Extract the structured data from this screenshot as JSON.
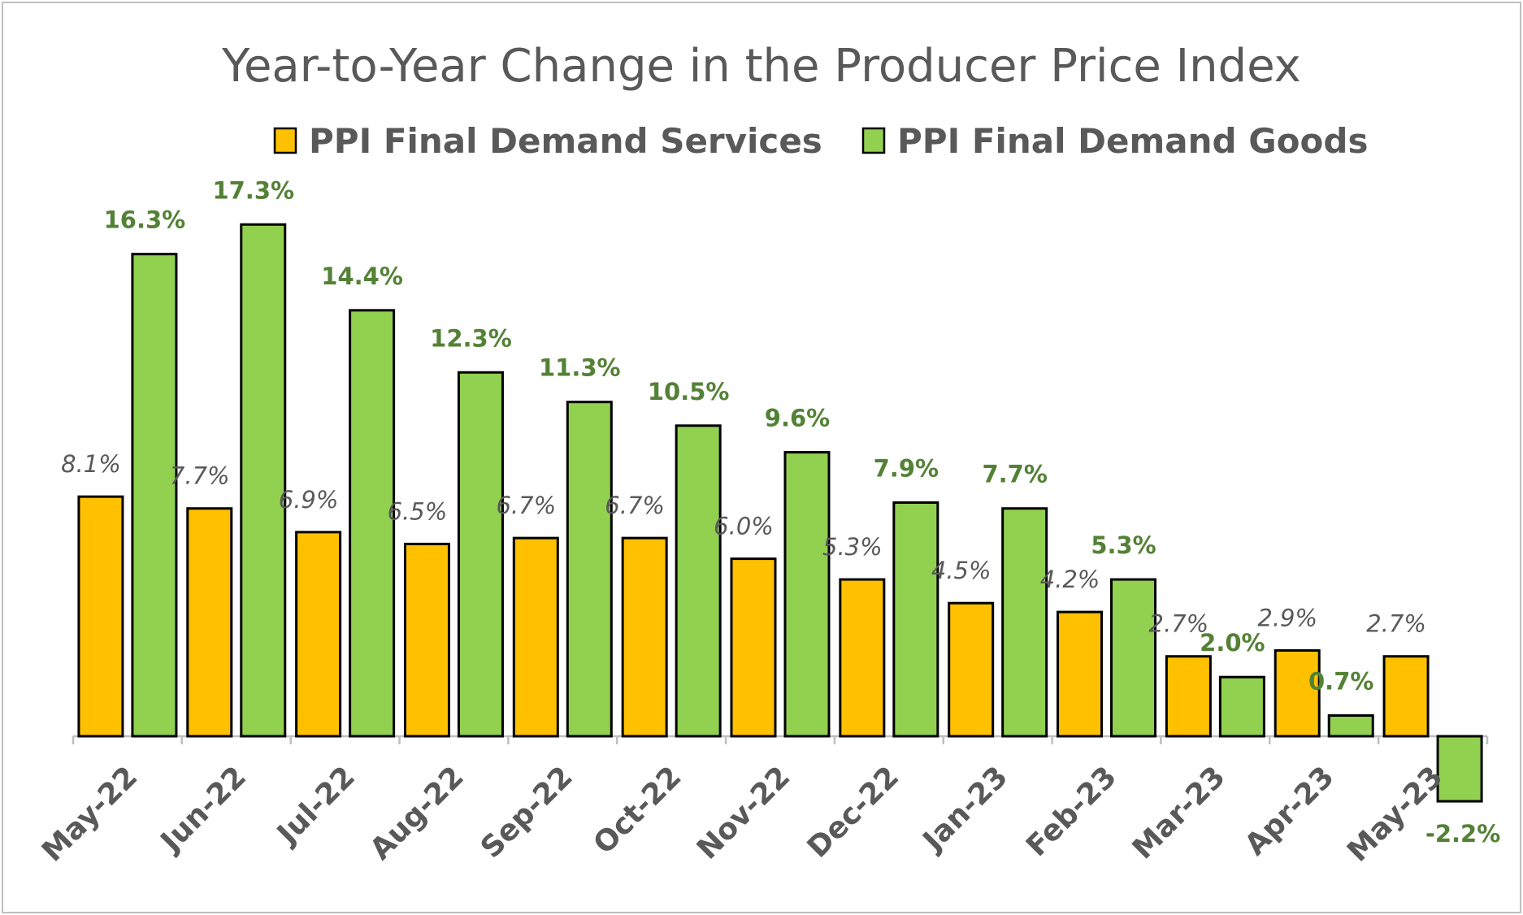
{
  "chart_data": {
    "type": "bar",
    "title": "Year-to-Year Change in the Producer Price Index",
    "xlabel": "",
    "ylabel": "",
    "categories": [
      "May-22",
      "Jun-22",
      "Jul-22",
      "Aug-22",
      "Sep-22",
      "Oct-22",
      "Nov-22",
      "Dec-22",
      "Jan-23",
      "Feb-23",
      "Mar-23",
      "Apr-23",
      "May-23"
    ],
    "series": [
      {
        "name": "PPI Final Demand Services",
        "color": "#ffc000",
        "values": [
          8.1,
          7.7,
          6.9,
          6.5,
          6.7,
          6.7,
          6.0,
          5.3,
          4.5,
          4.2,
          2.7,
          2.9,
          2.7
        ],
        "labels": [
          "8.1%",
          "7.7%",
          "6.9%",
          "6.5%",
          "6.7%",
          "6.7%",
          "6.0%",
          "5.3%",
          "4.5%",
          "4.2%",
          "2.7%",
          "2.9%",
          "2.7%"
        ]
      },
      {
        "name": "PPI Final Demand Goods",
        "color": "#92d050",
        "values": [
          16.3,
          17.3,
          14.4,
          12.3,
          11.3,
          10.5,
          9.6,
          7.9,
          7.7,
          5.3,
          2.0,
          0.7,
          -2.2
        ],
        "labels": [
          "16.3%",
          "17.3%",
          "14.4%",
          "12.3%",
          "11.3%",
          "10.5%",
          "9.6%",
          "7.9%",
          "7.7%",
          "5.3%",
          "2.0%",
          "0.7%",
          "-2.2%"
        ]
      }
    ],
    "legend_position": "top",
    "grid": false,
    "bar_outline_color": "#000000",
    "goods_label_color": "#538135",
    "services_label_color": "#595959"
  }
}
